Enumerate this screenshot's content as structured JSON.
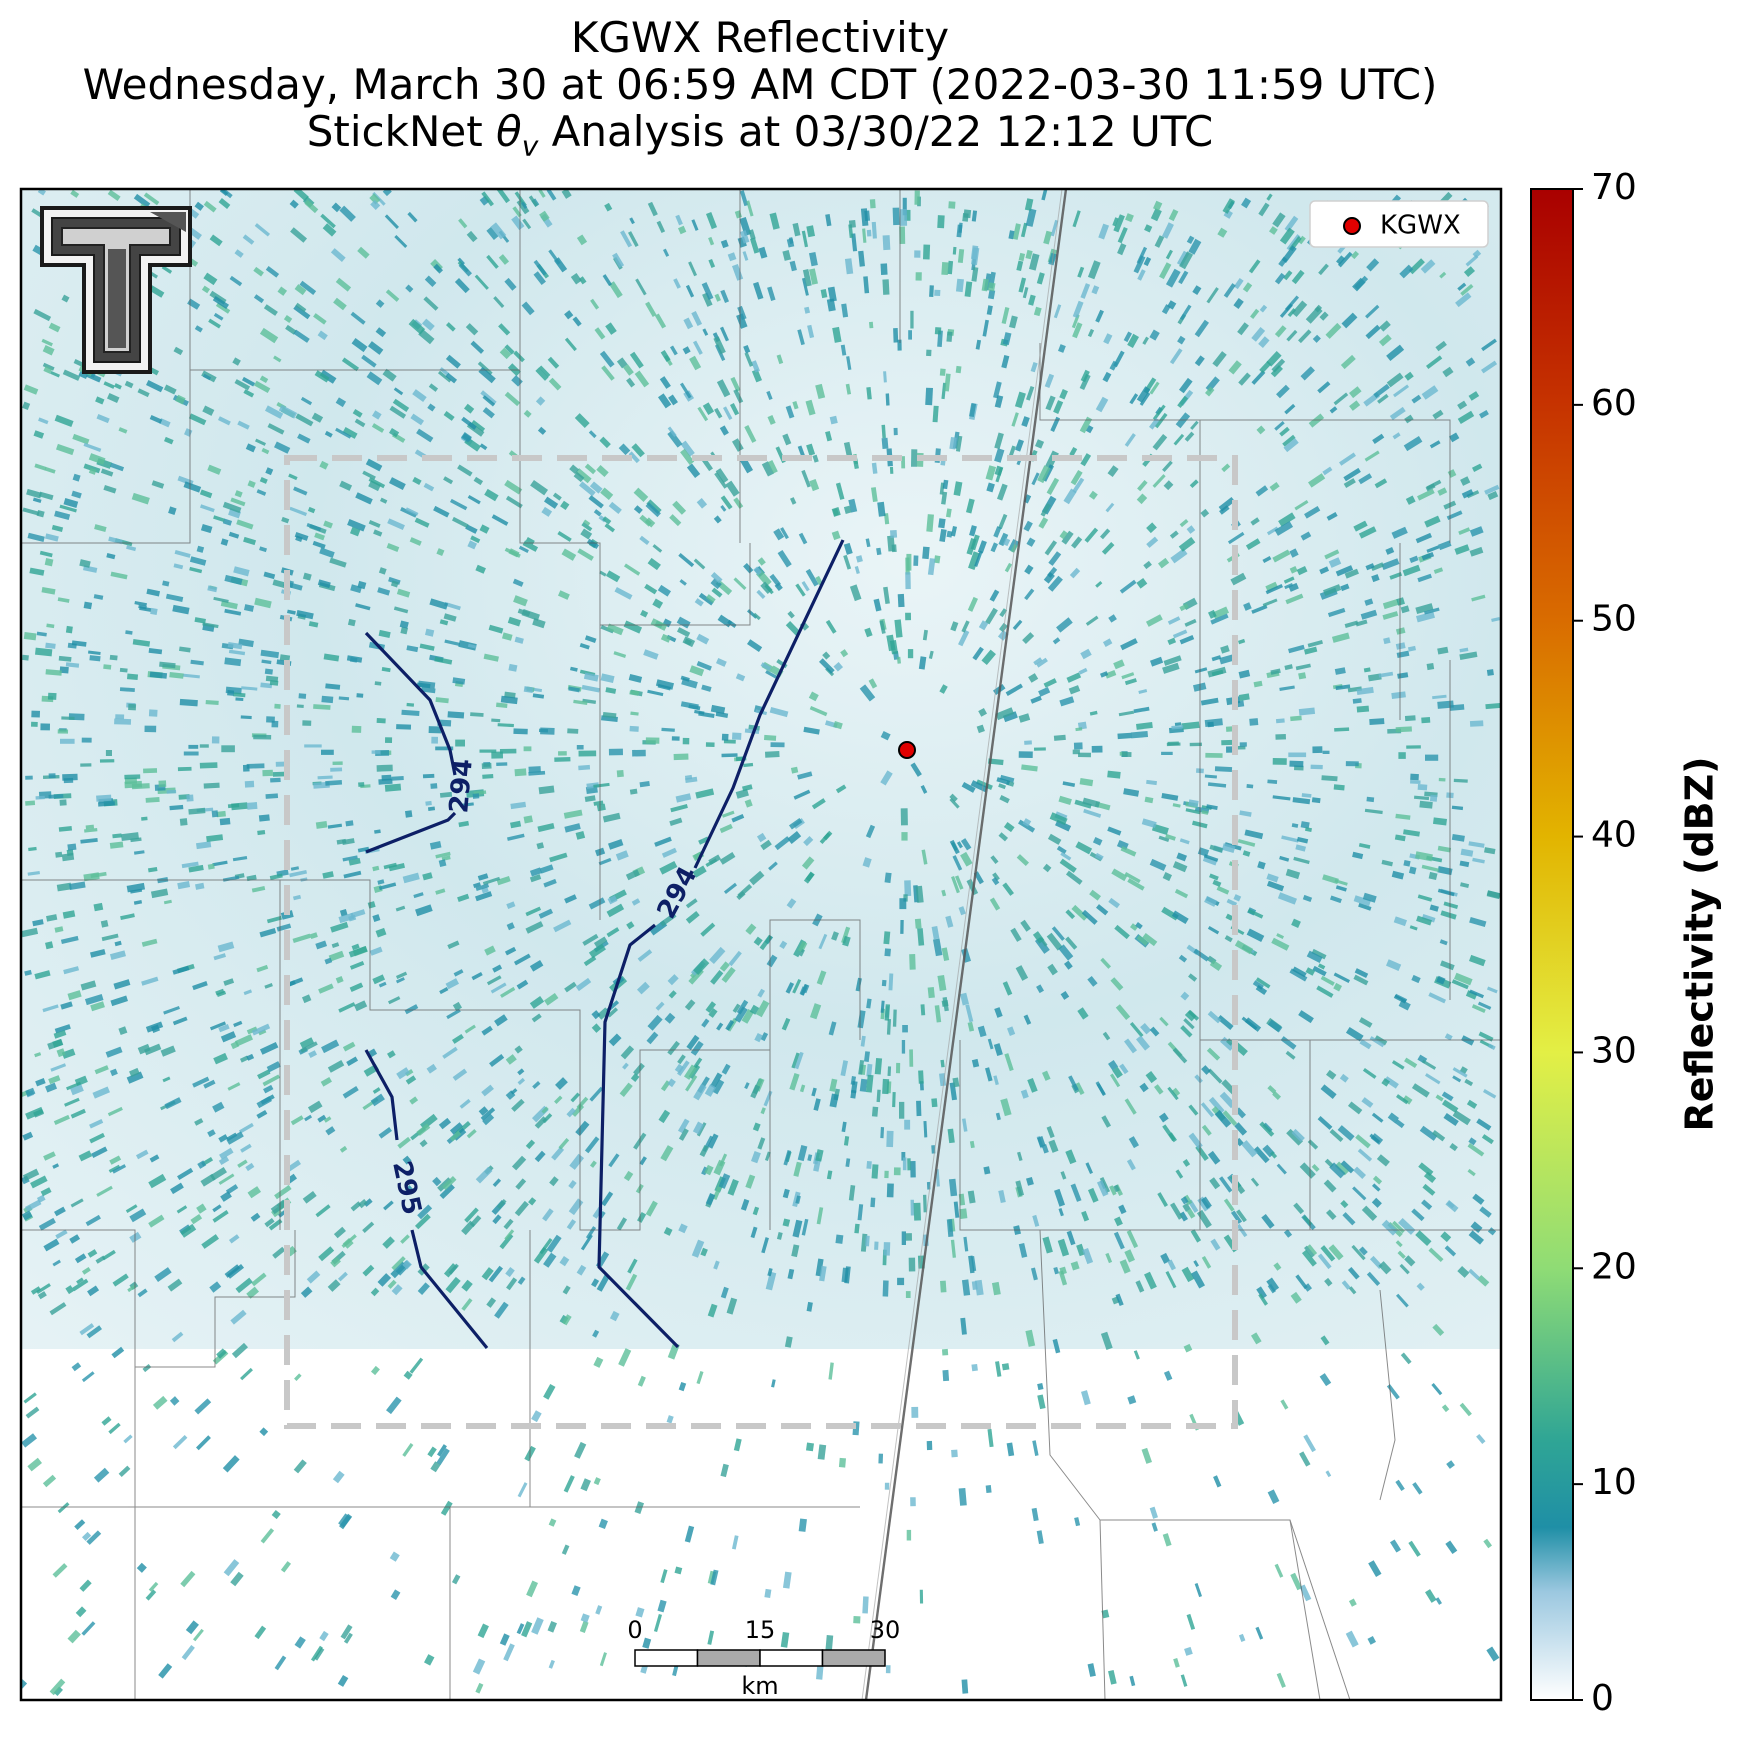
{
  "title": {
    "line1": "KGWX Reflectivity",
    "line2": "Wednesday, March 30 at 06:59 AM CDT (2022-03-30 11:59 UTC)",
    "line3_prefix": "StickNet ",
    "line3_theta": "θ",
    "line3_sub": "v",
    "line3_suffix": " Analysis at 03/30/22 12:12 UTC"
  },
  "legend": {
    "label": "KGWX",
    "marker_color": "#e00000"
  },
  "colorbar": {
    "label": "Reflectivity (dBZ)",
    "ticks": [
      "0",
      "10",
      "20",
      "30",
      "40",
      "50",
      "60",
      "70"
    ],
    "min": 0,
    "max": 70,
    "stops": [
      {
        "v": 0,
        "c": "#ffffff"
      },
      {
        "v": 5,
        "c": "#9cc8e0"
      },
      {
        "v": 8,
        "c": "#1f8fa6"
      },
      {
        "v": 12,
        "c": "#2fa595"
      },
      {
        "v": 20,
        "c": "#8fdc75"
      },
      {
        "v": 30,
        "c": "#e3ef45"
      },
      {
        "v": 40,
        "c": "#e2b400"
      },
      {
        "v": 50,
        "c": "#d96c00"
      },
      {
        "v": 60,
        "c": "#c63300"
      },
      {
        "v": 70,
        "c": "#a90000"
      }
    ]
  },
  "scalebar": {
    "labels": [
      "0",
      "15",
      "30"
    ],
    "unit": "km"
  },
  "contours": [
    {
      "label": "294"
    },
    {
      "label": "294"
    },
    {
      "label": "295"
    }
  ],
  "colors": {
    "contour": "#0d1f66",
    "domain_box": "#c8c8c8",
    "echo": "#2a95ad"
  }
}
